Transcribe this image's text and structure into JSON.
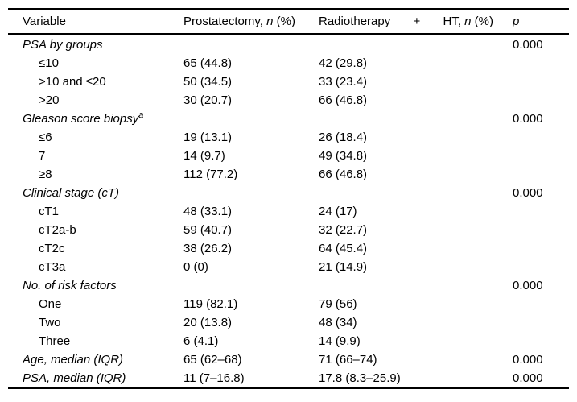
{
  "page": {
    "background_color": "#ffffff",
    "text_color": "#000000",
    "rule_color": "#000000"
  },
  "table": {
    "header": {
      "variable": "Variable",
      "prostatectomy": {
        "pre": "Prostatectomy, ",
        "n": "n",
        "post": " (%)"
      },
      "radiotherapy": {
        "word": "Radiotherapy",
        "plus": "+",
        "ht_pre": "HT, ",
        "n": "n",
        "post": " (%)"
      },
      "p": "p"
    },
    "rows": [
      {
        "variable": "PSA by groups",
        "p": "0.000"
      },
      {
        "variable": "≤10",
        "prostatectomy": "65 (44.8)",
        "radiotherapy": "42 (29.8)"
      },
      {
        "variable": ">10 and ≤20",
        "prostatectomy": "50 (34.5)",
        "radiotherapy": "33 (23.4)"
      },
      {
        "variable": ">20",
        "prostatectomy": "30 (20.7)",
        "radiotherapy": "66 (46.8)"
      },
      {
        "variable": "Gleason score biopsy",
        "sup": "a",
        "p": "0.000"
      },
      {
        "variable": "≤6",
        "prostatectomy": "19 (13.1)",
        "radiotherapy": "26 (18.4)"
      },
      {
        "variable": "7",
        "prostatectomy": "14 (9.7)",
        "radiotherapy": "49 (34.8)"
      },
      {
        "variable": "≥8",
        "prostatectomy": "112 (77.2)",
        "radiotherapy": "66 (46.8)"
      },
      {
        "variable": "Clinical stage (cT)",
        "p": "0.000"
      },
      {
        "variable": "cT1",
        "prostatectomy": "48 (33.1)",
        "radiotherapy": "24 (17)"
      },
      {
        "variable": "cT2a-b",
        "prostatectomy": "59 (40.7)",
        "radiotherapy": "32 (22.7)"
      },
      {
        "variable": "cT2c",
        "prostatectomy": "38 (26.2)",
        "radiotherapy": "64 (45.4)"
      },
      {
        "variable": "cT3a",
        "prostatectomy": "0 (0)",
        "radiotherapy": "21 (14.9)"
      },
      {
        "variable": "No. of risk factors",
        "p": "0.000"
      },
      {
        "variable": "One",
        "prostatectomy": "119 (82.1)",
        "radiotherapy": "79 (56)"
      },
      {
        "variable": "Two",
        "prostatectomy": "20 (13.8)",
        "radiotherapy": "48 (34)"
      },
      {
        "variable": "Three",
        "prostatectomy": "6 (4.1)",
        "radiotherapy": "14 (9.9)"
      },
      {
        "variable": "Age, median (IQR)",
        "prostatectomy": "65 (62–68)",
        "radiotherapy": "71 (66–74)",
        "p": "0.000"
      },
      {
        "variable": "PSA, median (IQR)",
        "prostatectomy": "11 (7–16.8)",
        "radiotherapy": "17.8 (8.3–25.9)",
        "p": "0.000"
      }
    ]
  }
}
